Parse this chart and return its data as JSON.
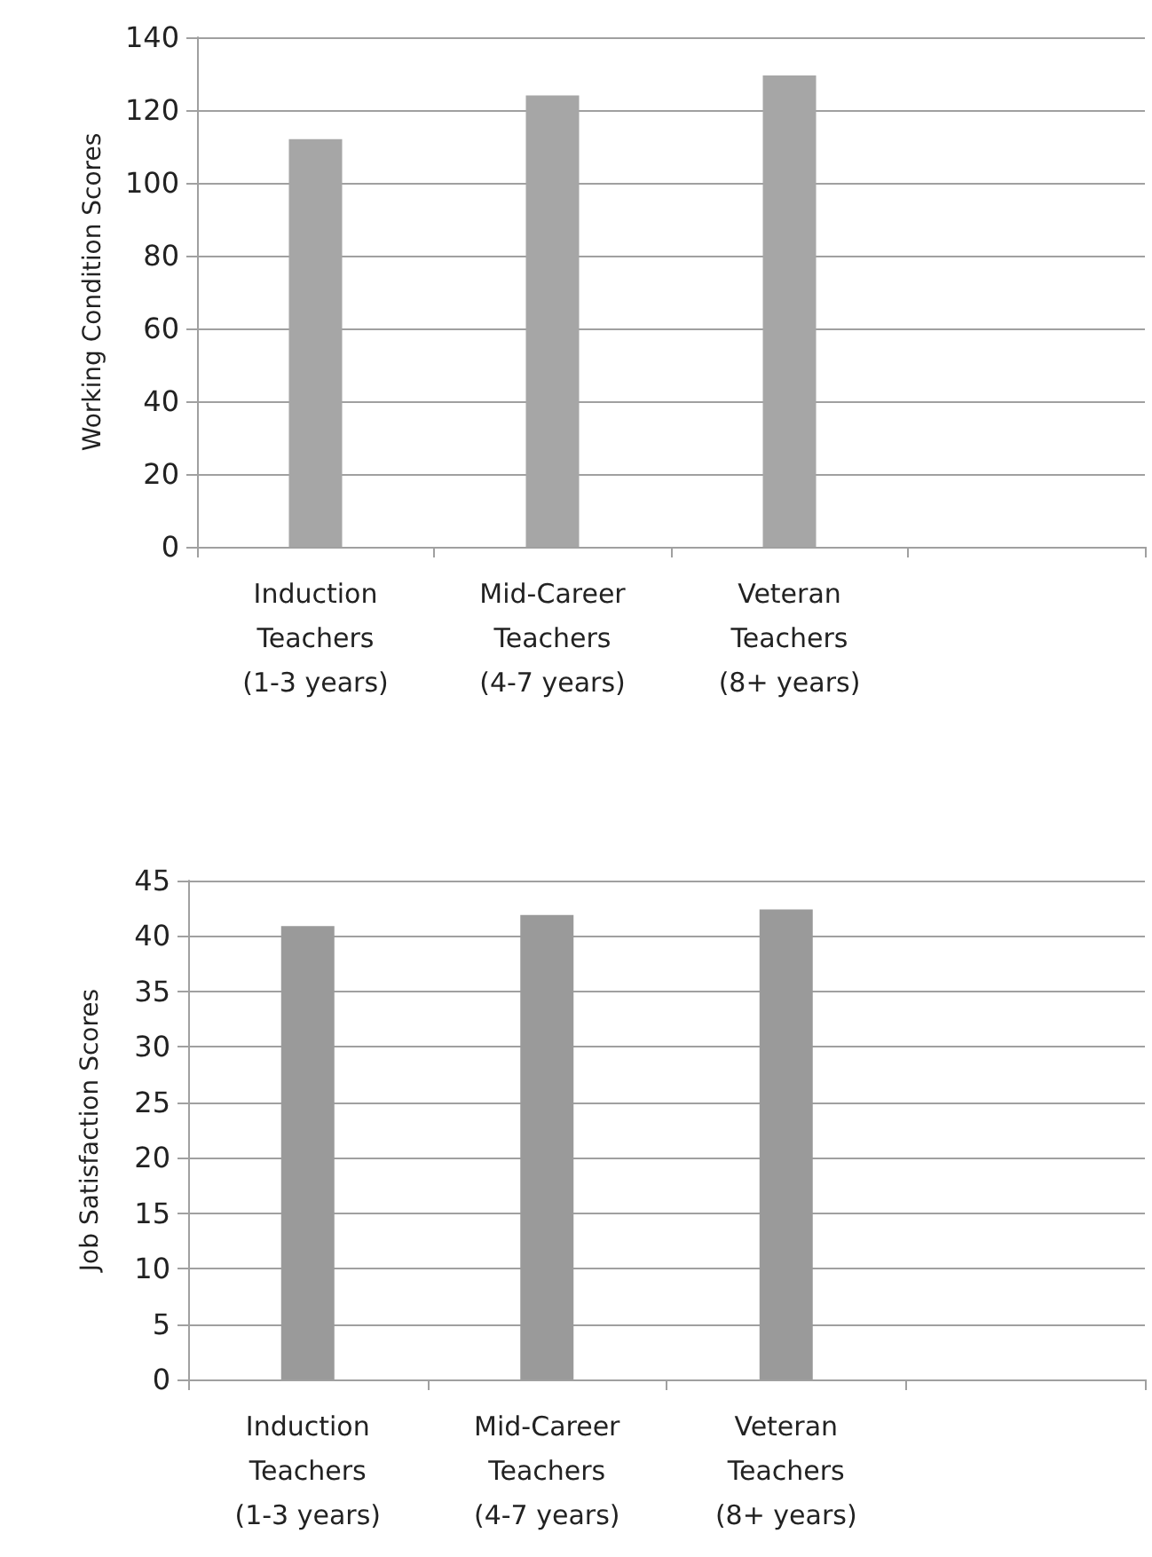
{
  "chart_data": [
    {
      "type": "bar",
      "ylabel": "Working Condition Scores",
      "categories": [
        "Induction Teachers (1-3 years)",
        "Mid-Career Teachers (4-7 years)",
        "Veteran Teachers (8+ years)",
        null
      ],
      "values": [
        112,
        124,
        129.5,
        null
      ],
      "color": "#a6a6a6",
      "ylim": [
        0,
        140
      ],
      "yticks": [
        0,
        20,
        40,
        60,
        80,
        100,
        120,
        140
      ],
      "grid": "y"
    },
    {
      "type": "bar",
      "ylabel": "Job Satisfaction Scores",
      "categories": [
        "Induction Teachers (1-3 years)",
        "Mid-Career Teachers (4-7 years)",
        "Veteran Teachers (8+ years)",
        null
      ],
      "values": [
        40.9,
        41.9,
        42.4,
        null
      ],
      "color": "#9a9a9a",
      "ylim": [
        0,
        45
      ],
      "yticks": [
        0,
        5,
        10,
        15,
        20,
        25,
        30,
        35,
        40,
        45
      ],
      "grid": "y"
    }
  ]
}
